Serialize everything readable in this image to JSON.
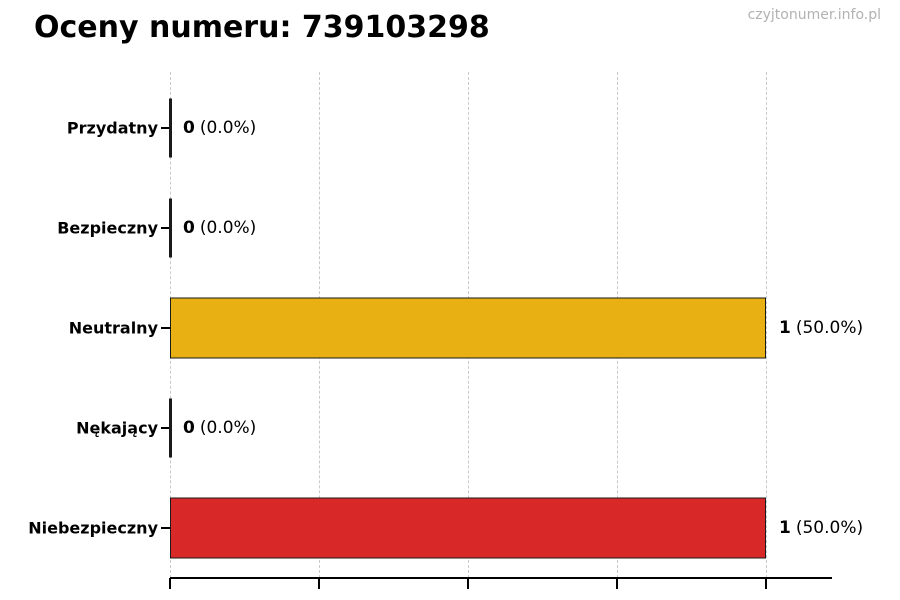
{
  "page": {
    "title": "Oceny numeru: 739103298",
    "watermark": "czyjtonumer.info.pl"
  },
  "chart_data": {
    "type": "bar",
    "orientation": "horizontal",
    "title": "Oceny numeru: 739103298",
    "categories": [
      "Przydatny",
      "Bezpieczny",
      "Neutralny",
      "Nękający",
      "Niebezpieczny"
    ],
    "values": [
      0,
      0,
      1,
      0,
      1
    ],
    "value_labels": [
      {
        "count": "0",
        "pct": "(0.0%)"
      },
      {
        "count": "0",
        "pct": "(0.0%)"
      },
      {
        "count": "1",
        "pct": "(50.0%)"
      },
      {
        "count": "0",
        "pct": "(0.0%)"
      },
      {
        "count": "1",
        "pct": "(50.0%)"
      }
    ],
    "bar_colors": [
      null,
      null,
      "#e8b012",
      null,
      "#d92828"
    ],
    "bar_edge_color": "#1a1a1a",
    "xlim": [
      0,
      1.11
    ],
    "xticks": [
      0,
      0.25,
      0.5,
      0.75,
      1.0
    ],
    "xtick_labels": [
      "",
      "",
      "",
      "",
      ""
    ],
    "grid": true,
    "gridline_color": "#c9c9c9",
    "legend": "none"
  }
}
